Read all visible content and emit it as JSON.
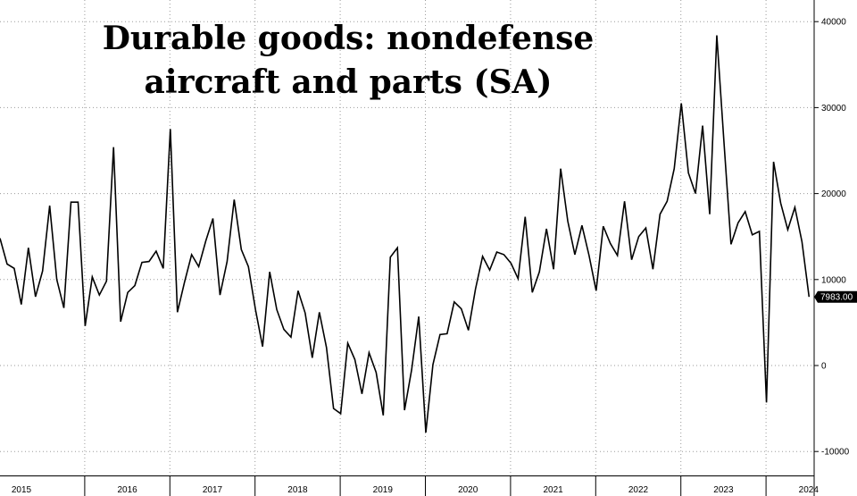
{
  "chart_data": {
    "type": "line",
    "title_lines": [
      "Durable goods: nondefense",
      "aircraft and parts (SA)"
    ],
    "xlabel": "",
    "ylabel": "",
    "x_start": "2015-01",
    "x_end": "2024-07",
    "ylim": [
      -12000,
      43000
    ],
    "y_ticks": [
      -10000,
      0,
      10000,
      20000,
      30000,
      40000
    ],
    "y_tick_labels": [
      "-10000",
      "0",
      "10000",
      "20000",
      "30000",
      "40000"
    ],
    "year_labels": [
      "2015",
      "2016",
      "2017",
      "2018",
      "2019",
      "2020",
      "2021",
      "2022",
      "2023",
      "2024"
    ],
    "grid": true,
    "last_value_label": "7983.00",
    "series": [
      {
        "color": "#000000",
        "values": [
          14800,
          11800,
          11300,
          7100,
          13700,
          8000,
          11000,
          18600,
          10000,
          6700,
          19000,
          19000,
          4600,
          10300,
          8200,
          9800,
          25400,
          5100,
          8500,
          9300,
          12000,
          12100,
          13300,
          11300,
          27500,
          6200,
          9700,
          12900,
          11500,
          14500,
          17100,
          8200,
          12100,
          19300,
          13500,
          11500,
          6500,
          2200,
          10900,
          6500,
          4200,
          3300,
          8700,
          6100,
          900,
          6200,
          2100,
          -5000,
          -5600,
          2600,
          700,
          -3300,
          1500,
          -800,
          -5800,
          12600,
          13700,
          -5200,
          -500,
          5700,
          -7800,
          100,
          3600,
          3700,
          7400,
          6600,
          4100,
          8900,
          12700,
          11100,
          13200,
          12900,
          11900,
          10100,
          17300,
          8500,
          10900,
          15900,
          11200,
          22900,
          16800,
          12900,
          16300,
          12800,
          8700,
          16200,
          14200,
          12800,
          19100,
          12300,
          15000,
          16000,
          11200,
          17600,
          19100,
          22900,
          30500,
          22400,
          20000,
          27900,
          17600,
          38400,
          26100,
          14100,
          16600,
          17900,
          15200,
          15600,
          -4300,
          23700,
          18900,
          15800,
          18400,
          14400,
          7983
        ]
      }
    ]
  }
}
